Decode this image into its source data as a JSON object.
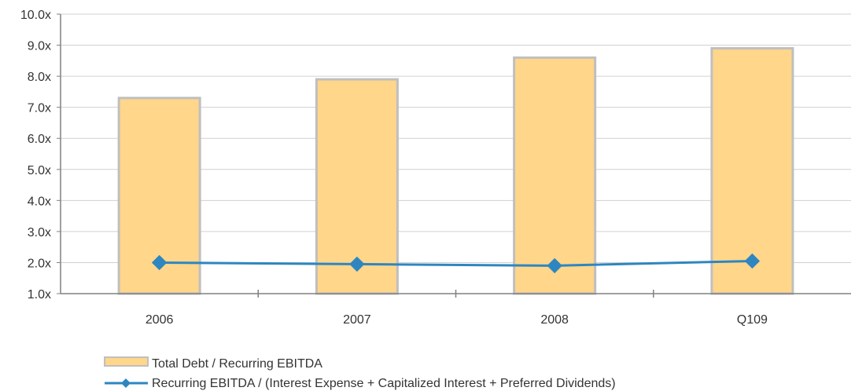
{
  "chart_data": {
    "type": "bar",
    "categories": [
      "2006",
      "2007",
      "2008",
      "Q109"
    ],
    "series": [
      {
        "name": "Total Debt / Recurring EBITDA",
        "type": "bar",
        "values": [
          7.3,
          7.9,
          8.6,
          8.9
        ],
        "color": "#FFD68A",
        "border_color": "#BFBFBF"
      },
      {
        "name": "Recurring EBITDA / (Interest Expense + Capitalized Interest + Preferred Dividends)",
        "type": "line",
        "marker": "diamond",
        "values": [
          2.0,
          1.95,
          1.9,
          2.05
        ],
        "color": "#2E86C1"
      }
    ],
    "ylim": [
      1.0,
      10.0
    ],
    "yticks": [
      1.0,
      2.0,
      3.0,
      4.0,
      5.0,
      6.0,
      7.0,
      8.0,
      9.0,
      10.0
    ],
    "ytick_labels": [
      "1.0x",
      "2.0x",
      "3.0x",
      "4.0x",
      "5.0x",
      "6.0x",
      "7.0x",
      "8.0x",
      "9.0x",
      "10.0x"
    ],
    "grid": true,
    "grid_color": "#D0D0D0",
    "legend_position": "bottom-left"
  }
}
